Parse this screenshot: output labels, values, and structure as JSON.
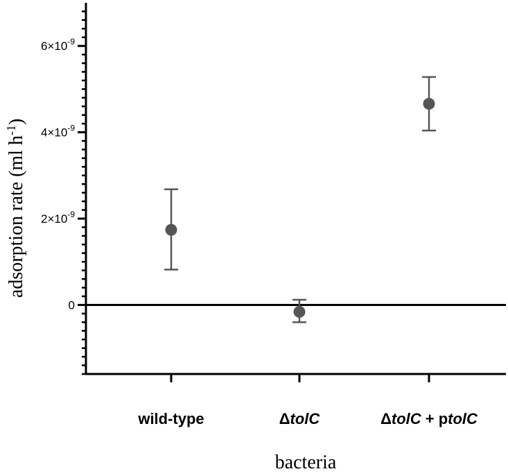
{
  "chart_data": {
    "type": "scatter",
    "xlabel": "bacteria",
    "ylabel_text": "adsorption rate (ml h",
    "ylabel_sup": "-1",
    "ylabel_close": ")",
    "ylim": [
      -1.6e-09,
      7e-09
    ],
    "ytick_values": [
      0,
      2e-09,
      4e-09,
      6e-09
    ],
    "ytick_labels": [
      {
        "base": "0",
        "exp": ""
      },
      {
        "base": "2×10",
        "exp": "-9"
      },
      {
        "base": "4×10",
        "exp": "-9"
      },
      {
        "base": "6×10",
        "exp": "-9"
      }
    ],
    "categories": [
      {
        "parts": [
          {
            "t": "wild-type",
            "i": false
          }
        ]
      },
      {
        "parts": [
          {
            "t": "Δ",
            "i": false
          },
          {
            "t": "tolC",
            "i": true
          }
        ]
      },
      {
        "parts": [
          {
            "t": "Δ",
            "i": false
          },
          {
            "t": "tolC",
            "i": true
          },
          {
            "t": " + p",
            "i": false
          },
          {
            "t": "tolC",
            "i": true
          }
        ]
      }
    ],
    "points": [
      {
        "y": 1.74e-09,
        "err_low": 8.2e-10,
        "err_high": 2.68e-09
      },
      {
        "y": -1.6e-10,
        "err_low": -4e-10,
        "err_high": 1.2e-10
      },
      {
        "y": 4.66e-09,
        "err_low": 4.04e-09,
        "err_high": 5.28e-09
      }
    ],
    "zero_line": true,
    "grid": false,
    "legend": "none",
    "colors": {
      "axis": "#000000",
      "point": "#555555",
      "errorbar": "#555555"
    }
  }
}
